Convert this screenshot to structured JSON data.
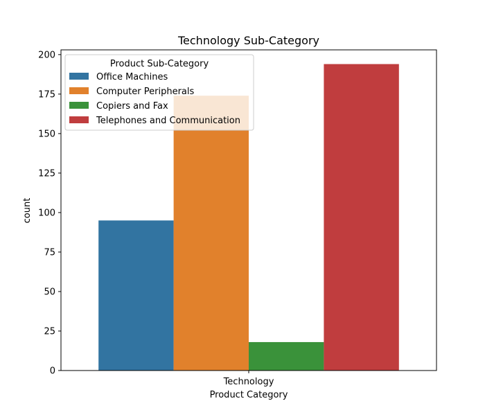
{
  "chart_data": {
    "type": "bar",
    "title": "Technology Sub-Category",
    "xlabel": "Product Category",
    "ylabel": "count",
    "categories": [
      "Technology"
    ],
    "series": [
      {
        "name": "Office Machines",
        "values": [
          95
        ],
        "color": "#3274a1"
      },
      {
        "name": "Computer Peripherals",
        "values": [
          174
        ],
        "color": "#e1812c"
      },
      {
        "name": "Copiers and Fax",
        "values": [
          18
        ],
        "color": "#3a923a"
      },
      {
        "name": "Telephones and Communication",
        "values": [
          194
        ],
        "color": "#c03d3e"
      }
    ],
    "ylim": [
      0,
      203
    ],
    "yticks": [
      0,
      25,
      50,
      75,
      100,
      125,
      150,
      175,
      200
    ],
    "grid": false,
    "legend": {
      "title": "Product Sub-Category",
      "placement": "top-left"
    }
  }
}
